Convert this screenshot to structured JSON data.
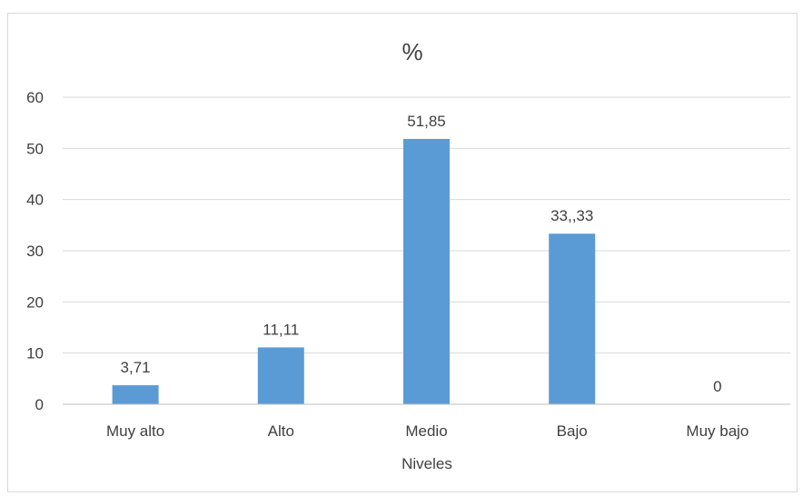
{
  "chart_data": {
    "type": "bar",
    "title": "%",
    "xlabel": "Niveles",
    "ylabel": "",
    "categories": [
      "Muy alto",
      "Alto",
      "Medio",
      "Bajo",
      "Muy bajo"
    ],
    "values": [
      3.71,
      11.11,
      51.85,
      33.33,
      0
    ],
    "data_labels": [
      "3,71",
      "11,11",
      "51,85",
      "33,,33",
      "0"
    ],
    "ylim": [
      0,
      60
    ],
    "yticks": [
      0,
      10,
      20,
      30,
      40,
      50,
      60
    ],
    "ytick_labels": [
      "0",
      "10",
      "20",
      "30",
      "40",
      "50",
      "60"
    ],
    "grid": true,
    "legend": "none",
    "colors": {
      "bar": "#5b9bd5",
      "grid": "#d9d9d9",
      "axis": "#bfbfbf",
      "text": "#404040"
    }
  }
}
